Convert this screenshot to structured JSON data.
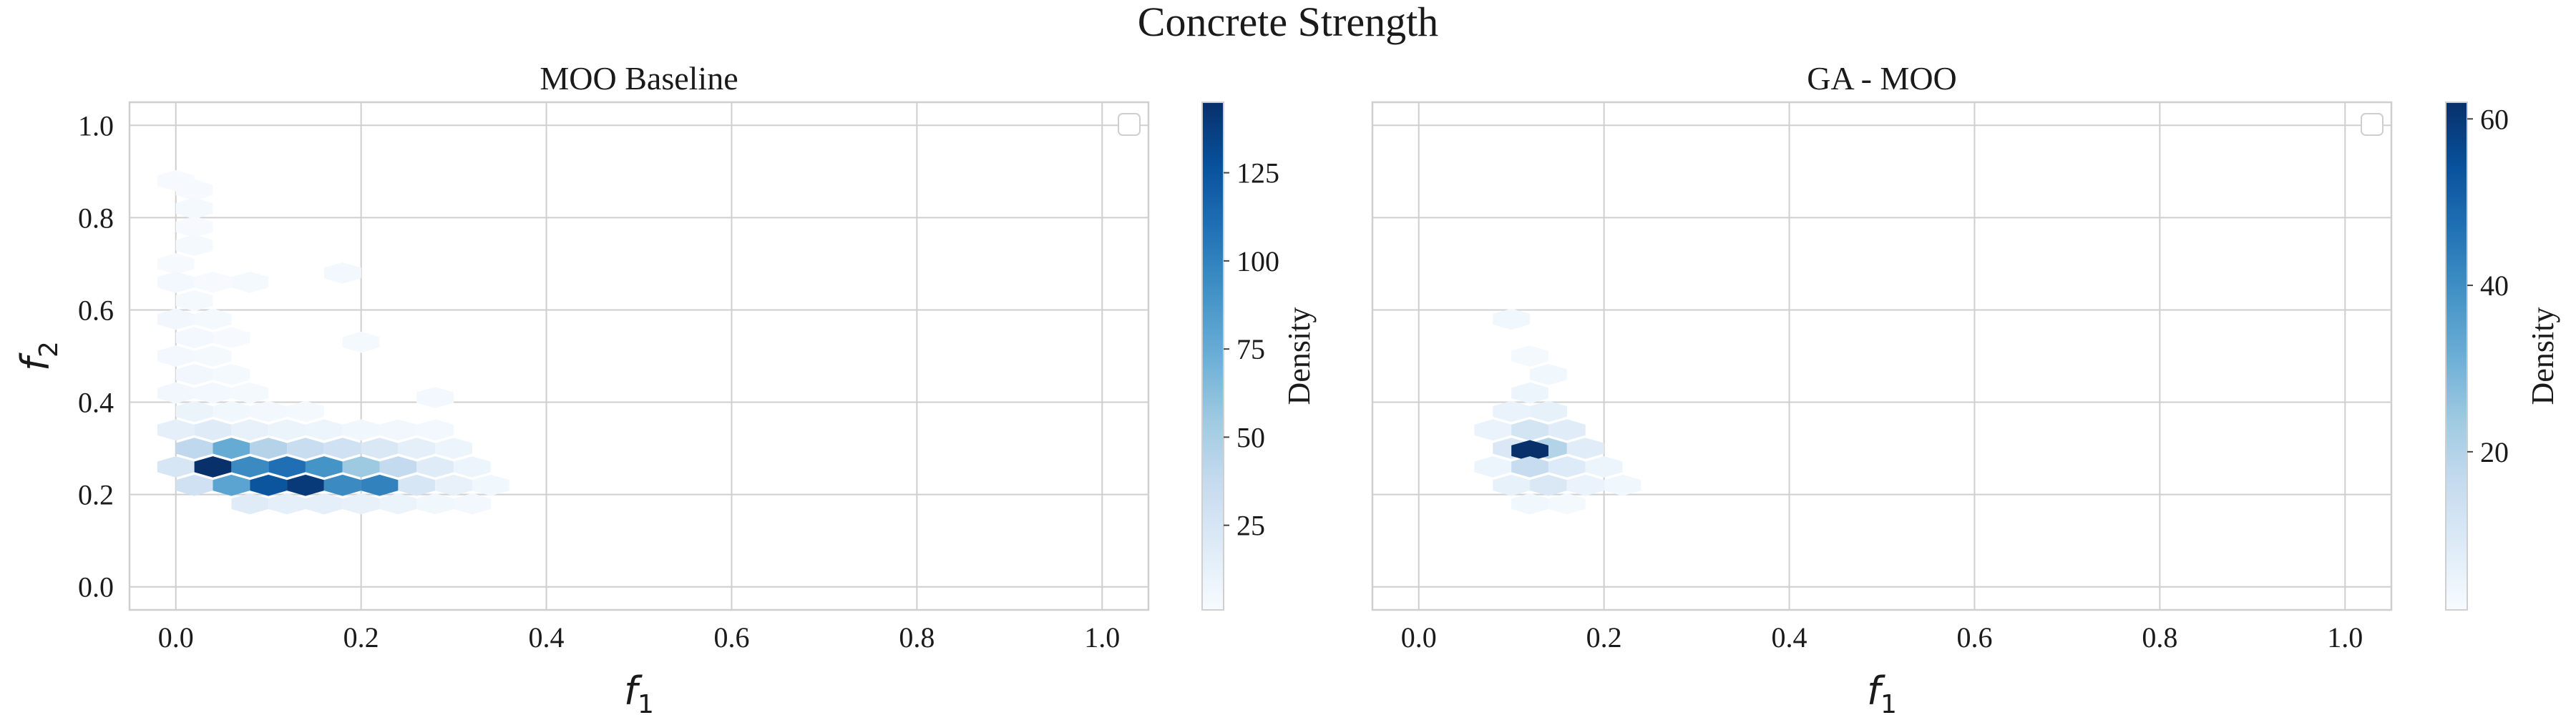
{
  "figure_title": "Concrete Strength",
  "chart_data": [
    {
      "type": "heatmap",
      "subtype": "hexbin",
      "title": "MOO Baseline",
      "xlabel": "f",
      "xlabel_subscript": "1",
      "ylabel": "f",
      "ylabel_subscript": "2",
      "xlim": [
        -0.05,
        1.05
      ],
      "ylim": [
        -0.05,
        1.05
      ],
      "xticks": [
        0.0,
        0.2,
        0.4,
        0.6,
        0.8,
        1.0
      ],
      "yticks": [
        0.0,
        0.2,
        0.4,
        0.6,
        0.8,
        1.0
      ],
      "xtick_labels": [
        "0.0",
        "0.2",
        "0.4",
        "0.6",
        "0.8",
        "1.0"
      ],
      "ytick_labels": [
        "0.0",
        "0.2",
        "0.4",
        "0.6",
        "0.8",
        "1.0"
      ],
      "grid": true,
      "legend": "top-right (empty)",
      "colormap": "Blues",
      "colorbar": {
        "label": "Density",
        "min": 1,
        "max": 145,
        "ticks": [
          25,
          50,
          75,
          100,
          125
        ],
        "tick_labels": [
          "25",
          "50",
          "75",
          "100",
          "125"
        ]
      },
      "cells": [
        {
          "x": 0.0,
          "y": 0.88,
          "v": 2
        },
        {
          "x": 0.02,
          "y": 0.86,
          "v": 2
        },
        {
          "x": 0.02,
          "y": 0.82,
          "v": 3
        },
        {
          "x": 0.02,
          "y": 0.78,
          "v": 2
        },
        {
          "x": 0.02,
          "y": 0.74,
          "v": 3
        },
        {
          "x": 0.0,
          "y": 0.7,
          "v": 2
        },
        {
          "x": 0.04,
          "y": 0.66,
          "v": 2
        },
        {
          "x": 0.0,
          "y": 0.66,
          "v": 4
        },
        {
          "x": 0.02,
          "y": 0.62,
          "v": 3
        },
        {
          "x": 0.0,
          "y": 0.58,
          "v": 5
        },
        {
          "x": 0.04,
          "y": 0.58,
          "v": 3
        },
        {
          "x": 0.02,
          "y": 0.54,
          "v": 4
        },
        {
          "x": 0.06,
          "y": 0.54,
          "v": 2
        },
        {
          "x": 0.0,
          "y": 0.5,
          "v": 4
        },
        {
          "x": 0.04,
          "y": 0.5,
          "v": 3
        },
        {
          "x": 0.02,
          "y": 0.46,
          "v": 5
        },
        {
          "x": 0.06,
          "y": 0.46,
          "v": 3
        },
        {
          "x": 0.0,
          "y": 0.42,
          "v": 5
        },
        {
          "x": 0.04,
          "y": 0.42,
          "v": 4
        },
        {
          "x": 0.08,
          "y": 0.42,
          "v": 3
        },
        {
          "x": 0.02,
          "y": 0.38,
          "v": 9
        },
        {
          "x": 0.06,
          "y": 0.38,
          "v": 6
        },
        {
          "x": 0.1,
          "y": 0.38,
          "v": 4
        },
        {
          "x": 0.14,
          "y": 0.38,
          "v": 3
        },
        {
          "x": 0.08,
          "y": 0.66,
          "v": 3
        },
        {
          "x": 0.18,
          "y": 0.68,
          "v": 4
        },
        {
          "x": 0.2,
          "y": 0.53,
          "v": 3
        },
        {
          "x": 0.28,
          "y": 0.41,
          "v": 4
        },
        {
          "x": 0.0,
          "y": 0.34,
          "v": 14
        },
        {
          "x": 0.04,
          "y": 0.34,
          "v": 18
        },
        {
          "x": 0.08,
          "y": 0.34,
          "v": 12
        },
        {
          "x": 0.12,
          "y": 0.34,
          "v": 9
        },
        {
          "x": 0.16,
          "y": 0.34,
          "v": 8
        },
        {
          "x": 0.2,
          "y": 0.34,
          "v": 6
        },
        {
          "x": 0.24,
          "y": 0.34,
          "v": 5
        },
        {
          "x": 0.28,
          "y": 0.34,
          "v": 4
        },
        {
          "x": 0.02,
          "y": 0.3,
          "v": 40
        },
        {
          "x": 0.06,
          "y": 0.3,
          "v": 75
        },
        {
          "x": 0.1,
          "y": 0.3,
          "v": 45
        },
        {
          "x": 0.14,
          "y": 0.3,
          "v": 35
        },
        {
          "x": 0.18,
          "y": 0.3,
          "v": 30
        },
        {
          "x": 0.22,
          "y": 0.3,
          "v": 22
        },
        {
          "x": 0.26,
          "y": 0.3,
          "v": 15
        },
        {
          "x": 0.3,
          "y": 0.3,
          "v": 8
        },
        {
          "x": 0.0,
          "y": 0.26,
          "v": 25
        },
        {
          "x": 0.04,
          "y": 0.26,
          "v": 145
        },
        {
          "x": 0.08,
          "y": 0.26,
          "v": 95
        },
        {
          "x": 0.12,
          "y": 0.26,
          "v": 110
        },
        {
          "x": 0.16,
          "y": 0.26,
          "v": 90
        },
        {
          "x": 0.2,
          "y": 0.26,
          "v": 55
        },
        {
          "x": 0.24,
          "y": 0.26,
          "v": 38
        },
        {
          "x": 0.28,
          "y": 0.26,
          "v": 18
        },
        {
          "x": 0.32,
          "y": 0.26,
          "v": 8
        },
        {
          "x": 0.02,
          "y": 0.22,
          "v": 30
        },
        {
          "x": 0.06,
          "y": 0.22,
          "v": 80
        },
        {
          "x": 0.1,
          "y": 0.22,
          "v": 125
        },
        {
          "x": 0.14,
          "y": 0.22,
          "v": 140
        },
        {
          "x": 0.18,
          "y": 0.22,
          "v": 95
        },
        {
          "x": 0.22,
          "y": 0.22,
          "v": 100
        },
        {
          "x": 0.26,
          "y": 0.22,
          "v": 25
        },
        {
          "x": 0.3,
          "y": 0.22,
          "v": 12
        },
        {
          "x": 0.34,
          "y": 0.22,
          "v": 6
        },
        {
          "x": 0.08,
          "y": 0.18,
          "v": 18
        },
        {
          "x": 0.12,
          "y": 0.18,
          "v": 15
        },
        {
          "x": 0.16,
          "y": 0.18,
          "v": 14
        },
        {
          "x": 0.2,
          "y": 0.18,
          "v": 12
        },
        {
          "x": 0.24,
          "y": 0.18,
          "v": 9
        },
        {
          "x": 0.28,
          "y": 0.18,
          "v": 6
        },
        {
          "x": 0.32,
          "y": 0.18,
          "v": 4
        }
      ]
    },
    {
      "type": "heatmap",
      "subtype": "hexbin",
      "title": "GA - MOO",
      "xlabel": "f",
      "xlabel_subscript": "1",
      "ylabel": "",
      "xlim": [
        -0.05,
        1.05
      ],
      "ylim": [
        -0.05,
        1.05
      ],
      "xticks": [
        0.0,
        0.2,
        0.4,
        0.6,
        0.8,
        1.0
      ],
      "xtick_labels": [
        "0.0",
        "0.2",
        "0.4",
        "0.6",
        "0.8",
        "1.0"
      ],
      "yticks": [
        0.0,
        0.2,
        0.4,
        0.6,
        0.8,
        1.0
      ],
      "ytick_labels": [],
      "grid": true,
      "legend": "top-right (empty)",
      "colormap": "Blues",
      "colorbar": {
        "label": "Density",
        "min": 1,
        "max": 62,
        "ticks": [
          20,
          40,
          60
        ],
        "tick_labels": [
          "20",
          "40",
          "60"
        ]
      },
      "cells": [
        {
          "x": 0.1,
          "y": 0.58,
          "v": 3
        },
        {
          "x": 0.12,
          "y": 0.5,
          "v": 2
        },
        {
          "x": 0.14,
          "y": 0.46,
          "v": 3
        },
        {
          "x": 0.12,
          "y": 0.42,
          "v": 4
        },
        {
          "x": 0.1,
          "y": 0.38,
          "v": 5
        },
        {
          "x": 0.14,
          "y": 0.38,
          "v": 6
        },
        {
          "x": 0.08,
          "y": 0.34,
          "v": 5
        },
        {
          "x": 0.12,
          "y": 0.34,
          "v": 12
        },
        {
          "x": 0.16,
          "y": 0.34,
          "v": 8
        },
        {
          "x": 0.1,
          "y": 0.3,
          "v": 10
        },
        {
          "x": 0.14,
          "y": 0.3,
          "v": 20
        },
        {
          "x": 0.18,
          "y": 0.3,
          "v": 8
        },
        {
          "x": 0.12,
          "y": 0.295,
          "v": 62
        },
        {
          "x": 0.08,
          "y": 0.26,
          "v": 4
        },
        {
          "x": 0.12,
          "y": 0.26,
          "v": 16
        },
        {
          "x": 0.16,
          "y": 0.26,
          "v": 9
        },
        {
          "x": 0.2,
          "y": 0.26,
          "v": 4
        },
        {
          "x": 0.1,
          "y": 0.22,
          "v": 6
        },
        {
          "x": 0.14,
          "y": 0.22,
          "v": 10
        },
        {
          "x": 0.18,
          "y": 0.22,
          "v": 5
        },
        {
          "x": 0.22,
          "y": 0.22,
          "v": 3
        },
        {
          "x": 0.12,
          "y": 0.18,
          "v": 3
        },
        {
          "x": 0.16,
          "y": 0.18,
          "v": 2
        }
      ]
    }
  ]
}
